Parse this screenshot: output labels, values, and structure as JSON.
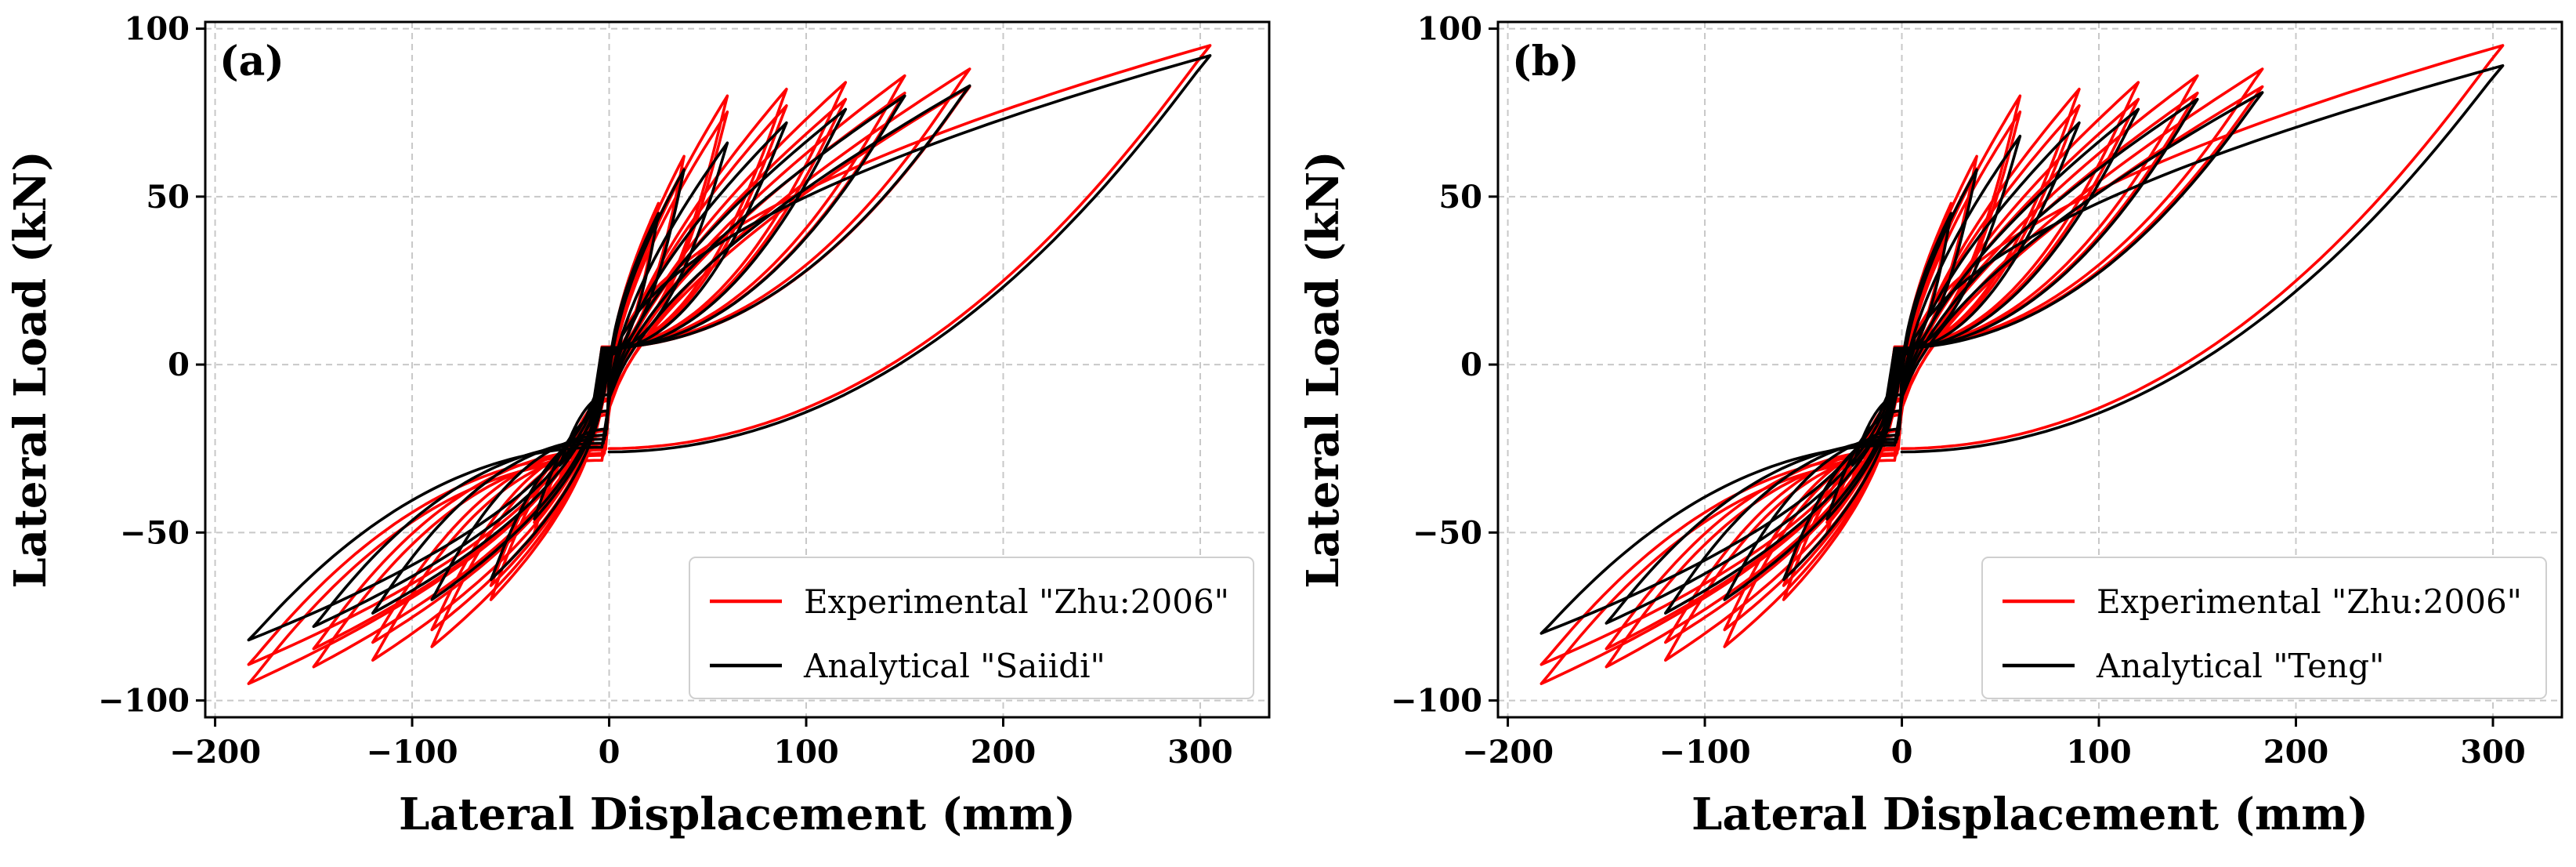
{
  "chart_data": [
    {
      "type": "line",
      "panel_label": "(a)",
      "xlabel": "Lateral Displacement (mm)",
      "ylabel": "Lateral Load (kN)",
      "xlim": [
        -205,
        335
      ],
      "ylim": [
        -105,
        102
      ],
      "xticks": [
        -200,
        -100,
        0,
        100,
        200,
        300
      ],
      "yticks": [
        -100,
        -50,
        0,
        50,
        100
      ],
      "xtick_labels": [
        "−200",
        "−100",
        "0",
        "100",
        "200",
        "300"
      ],
      "ytick_labels": [
        "−100",
        "−50",
        "0",
        "50",
        "100"
      ],
      "grid": true,
      "legend_position": "bottom-right",
      "series": [
        {
          "name": "Experimental \"Zhu:2006\"",
          "color": "#ff0000",
          "amplitudes": [
            25,
            38,
            60,
            90,
            120,
            150,
            183,
            305
          ],
          "peak_loads_pos": [
            48,
            62,
            80,
            82,
            84,
            86,
            88,
            95
          ],
          "peak_loads_neg": [
            -36,
            -50,
            -70,
            -84,
            -88,
            -90,
            -95,
            -25
          ],
          "repeat_cycles": 2
        },
        {
          "name": "Analytical \"Saiidi\"",
          "color": "#000000",
          "amplitudes": [
            25,
            38,
            60,
            90,
            120,
            150,
            183,
            305
          ],
          "peak_loads_pos": [
            45,
            58,
            66,
            72,
            76,
            80,
            83,
            92
          ],
          "peak_loads_neg": [
            -30,
            -46,
            -64,
            -70,
            -74,
            -78,
            -82,
            -26
          ],
          "repeat_cycles": 1
        }
      ]
    },
    {
      "type": "line",
      "panel_label": "(b)",
      "xlabel": "Lateral Displacement (mm)",
      "ylabel": "Lateral Load (kN)",
      "xlim": [
        -205,
        335
      ],
      "ylim": [
        -105,
        102
      ],
      "xticks": [
        -200,
        -100,
        0,
        100,
        200,
        300
      ],
      "yticks": [
        -100,
        -50,
        0,
        50,
        100
      ],
      "xtick_labels": [
        "−200",
        "−100",
        "0",
        "100",
        "200",
        "300"
      ],
      "ytick_labels": [
        "−100",
        "−50",
        "0",
        "50",
        "100"
      ],
      "grid": true,
      "legend_position": "bottom-right",
      "series": [
        {
          "name": "Experimental \"Zhu:2006\"",
          "color": "#ff0000",
          "amplitudes": [
            25,
            38,
            60,
            90,
            120,
            150,
            183,
            305
          ],
          "peak_loads_pos": [
            48,
            62,
            80,
            82,
            84,
            86,
            88,
            95
          ],
          "peak_loads_neg": [
            -36,
            -50,
            -70,
            -84,
            -88,
            -90,
            -95,
            -25
          ],
          "repeat_cycles": 2
        },
        {
          "name": "Analytical \"Teng\"",
          "color": "#000000",
          "amplitudes": [
            25,
            38,
            60,
            90,
            120,
            150,
            183,
            305
          ],
          "peak_loads_pos": [
            45,
            58,
            68,
            72,
            76,
            79,
            81,
            89
          ],
          "peak_loads_neg": [
            -30,
            -46,
            -64,
            -70,
            -74,
            -77,
            -80,
            -26
          ],
          "repeat_cycles": 1
        }
      ]
    }
  ]
}
